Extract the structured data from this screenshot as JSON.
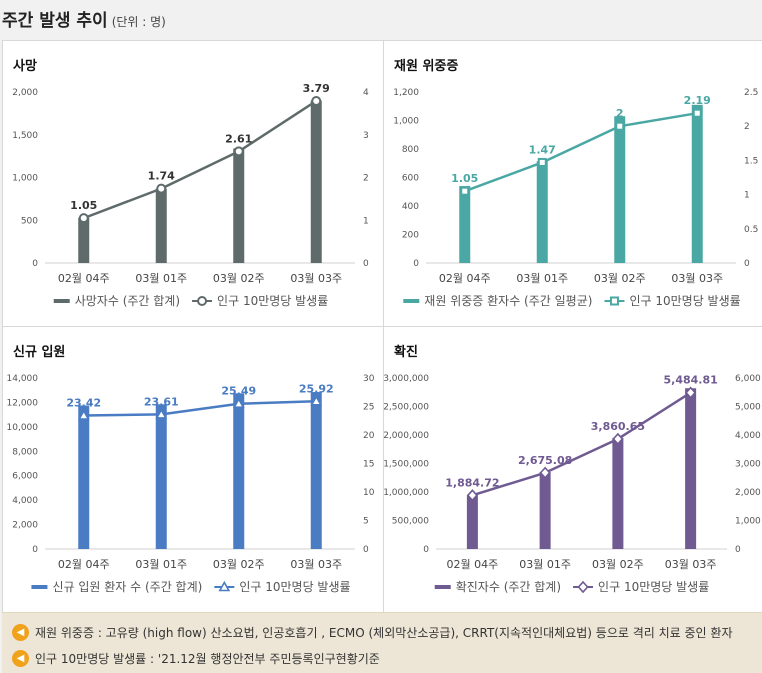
{
  "page": {
    "title": "주간 발생 추이",
    "unit": "(단위 : 명)"
  },
  "notes": [
    "재원 위중증 : 고유량 (high flow) 산소요법, 인공호흡기 , ECMO (체외막산소공급), CRRT(지속적인대체요법) 등으로 격리 치료 중인 환자",
    "인구 10만명당 발생률 : '21.12월 행정안전부 주민등록인구현황기준"
  ],
  "chart_data": [
    {
      "type": "bar",
      "title": "사망",
      "categories": [
        "02월 04주",
        "03월 01주",
        "03월 02주",
        "03월 03주"
      ],
      "bar_color": "#5f6b6b",
      "line_color": "#5f6b6b",
      "marker": "circle",
      "y_left": {
        "min": 0,
        "max": 2000,
        "ticks": [
          "0",
          "500",
          "1,000",
          "1,500",
          "2,000"
        ]
      },
      "y_right": {
        "min": 0,
        "max": 4,
        "ticks": [
          "0",
          "1",
          "2",
          "3",
          "4"
        ]
      },
      "series": [
        {
          "name": "사망자수 (주간 합계)",
          "kind": "bar",
          "axis": "left",
          "values": [
            530,
            870,
            1340,
            1900
          ]
        },
        {
          "name": "인구 10만명당 발생률",
          "kind": "line",
          "axis": "right",
          "values": [
            1.05,
            1.74,
            2.61,
            3.79
          ],
          "labels": [
            "1.05",
            "1.74",
            "2.61",
            "3.79"
          ]
        }
      ]
    },
    {
      "type": "bar",
      "title": "재원 위중증",
      "categories": [
        "02월 04주",
        "03월 01주",
        "03월 02주",
        "03월 03주"
      ],
      "bar_color": "#4aa8a4",
      "line_color": "#4aa8a4",
      "marker": "square",
      "y_left": {
        "min": 0,
        "max": 1200,
        "ticks": [
          "0",
          "200",
          "400",
          "600",
          "800",
          "1,000",
          "1,200"
        ]
      },
      "y_right": {
        "min": 0,
        "max": 2.5,
        "ticks": [
          "0",
          "0.5",
          "1",
          "1.5",
          "2",
          "2.5"
        ]
      },
      "series": [
        {
          "name": "재원 위중증 환자수 (주간 일평균)",
          "kind": "bar",
          "axis": "left",
          "values": [
            540,
            715,
            1030,
            1110
          ]
        },
        {
          "name": "인구 10만명당 발생률",
          "kind": "line",
          "axis": "right",
          "values": [
            1.05,
            1.47,
            2.0,
            2.19
          ],
          "labels": [
            "1.05",
            "1.47",
            "2",
            "2.19"
          ]
        }
      ]
    },
    {
      "type": "bar",
      "title": "신규 입원",
      "categories": [
        "02월 04주",
        "03월 01주",
        "03월 02주",
        "03월 03주"
      ],
      "bar_color": "#4a7cc4",
      "line_color": "#4a7cc4",
      "marker": "triangle",
      "y_left": {
        "min": 0,
        "max": 14000,
        "ticks": [
          "0",
          "2,000",
          "4,000",
          "6,000",
          "8,000",
          "10,000",
          "12,000",
          "14,000"
        ]
      },
      "y_right": {
        "min": 0,
        "max": 30,
        "ticks": [
          "0",
          "5",
          "10",
          "15",
          "20",
          "25",
          "30"
        ]
      },
      "series": [
        {
          "name": "신규 입원 환자 수 (주간 합계)",
          "kind": "bar",
          "axis": "left",
          "values": [
            11750,
            11850,
            12750,
            12850
          ]
        },
        {
          "name": "인구 10만명당 발생률",
          "kind": "line",
          "axis": "right",
          "values": [
            23.42,
            23.61,
            25.49,
            25.92
          ],
          "labels": [
            "23.42",
            "23.61",
            "25.49",
            "25.92"
          ]
        }
      ]
    },
    {
      "type": "bar",
      "title": "확진",
      "categories": [
        "02월 04주",
        "03월 01주",
        "03월 02주",
        "03월 03주"
      ],
      "bar_color": "#6f5a92",
      "line_color": "#6f5a92",
      "marker": "diamond",
      "y_left": {
        "min": 0,
        "max": 3000000,
        "ticks": [
          "0",
          "500,000",
          "1,000,000",
          "1,500,000",
          "2,000,000",
          "2,500,000",
          "3,000,000"
        ]
      },
      "y_right": {
        "min": 0,
        "max": 6000,
        "ticks": [
          "0",
          "1,000",
          "2,000",
          "3,000",
          "4,000",
          "5,000",
          "6,000"
        ]
      },
      "series": [
        {
          "name": "확진자수 (주간 합계)",
          "kind": "bar",
          "axis": "left",
          "values": [
            940000,
            1350000,
            1950000,
            2820000
          ]
        },
        {
          "name": "인구 10만명당 발생률",
          "kind": "line",
          "axis": "right",
          "values": [
            1884.72,
            2675.08,
            3860.65,
            5484.81
          ],
          "labels": [
            "1,884.72",
            "2,675.08",
            "3,860.65",
            "5,484.81"
          ]
        }
      ]
    }
  ]
}
